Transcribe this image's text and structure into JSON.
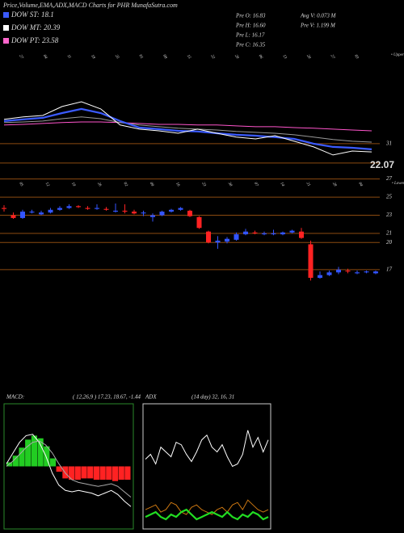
{
  "header": {
    "title": "Price,Volume,EMA,ADX,MACD Charts for PHR MunafaSutra.com",
    "legend": [
      {
        "label": "DOW ST: 18.1",
        "color": "#3b5bff"
      },
      {
        "label": "DOW MT: 20.39",
        "color": "#ffffff"
      },
      {
        "label": "DOW PT: 23.58",
        "color": "#ff66cc"
      }
    ],
    "stats": [
      "Pre  O: 16.83",
      "Pre  H: 16.60",
      "Pre  L: 16.17",
      "Pre  C: 16.35",
      "Avg V: 0.073 M",
      "Pre  V: 1.199 M"
    ]
  },
  "chart_data": [
    {
      "type": "line",
      "upper_label": "• Upper",
      "date_labels": [
        "27",
        "04",
        "11",
        "18",
        "25",
        "01",
        "08",
        "15",
        "22",
        "29",
        "06",
        "13",
        "20",
        "27",
        "03"
      ],
      "ylim": [
        17.2,
        73
      ],
      "yticks": [
        31,
        22.07
      ],
      "series": [
        {
          "color": "#ff55cc",
          "values": [
            39.6,
            39.9,
            40.3,
            40.7,
            41,
            41,
            40.7,
            40.3,
            39.9,
            39.9,
            39.6,
            39.6,
            39.2,
            38.8,
            38.8,
            38.4,
            38.1,
            37.7,
            37.3,
            36.9
          ]
        },
        {
          "color": "#999999",
          "values": [
            40.7,
            41,
            41.4,
            42.5,
            43.3,
            42.5,
            40.7,
            39.6,
            38.8,
            38.1,
            37.7,
            37.3,
            36.6,
            36.2,
            35.8,
            35.1,
            34,
            32.9,
            32.1,
            31.7
          ]
        },
        {
          "color": "#3b5bff",
          "values": [
            41.4,
            42.2,
            42.9,
            45.1,
            47,
            45.1,
            41.4,
            38.4,
            37.7,
            36.9,
            36.6,
            35.8,
            35.1,
            34.7,
            34,
            33.2,
            31,
            29.5,
            29.1,
            28.4
          ]
        },
        {
          "color": "#ffffff",
          "values": [
            42.2,
            43.3,
            44,
            48.1,
            50.3,
            47,
            39.6,
            37.7,
            36.9,
            35.8,
            37.7,
            35.8,
            34,
            33.2,
            34.7,
            32.1,
            29.5,
            25.8,
            27.6,
            27.2
          ]
        }
      ]
    },
    {
      "type": "candlestick",
      "lower_label": "• Lower",
      "date_labels": [
        "05",
        "12",
        "19",
        "26",
        "02",
        "09",
        "16",
        "23",
        "30",
        "07",
        "14",
        "21",
        "28",
        "04"
      ],
      "ylim": [
        14.5,
        27.5
      ],
      "yticks": [
        27,
        25,
        23,
        21,
        20,
        17
      ],
      "up_color": "#3355ff",
      "down_color": "#ff2222",
      "open": [
        23.8,
        23.0,
        22.7,
        23.3,
        23.1,
        23.3,
        23.6,
        23.8,
        24.0,
        23.8,
        23.7,
        23.7,
        23.4,
        23.5,
        23.4,
        23.2,
        22.8,
        23.0,
        23.4,
        23.6,
        23.5,
        22.8,
        21.2,
        20.0,
        20.1,
        20.3,
        20.9,
        21.1,
        20.9,
        20.9,
        20.9,
        21.1,
        21.2,
        19.8,
        16.1,
        16.4,
        16.7,
        16.9,
        16.6,
        16.7,
        16.6
      ],
      "high": [
        24.1,
        23.3,
        23.6,
        23.6,
        23.5,
        23.8,
        24.0,
        24.2,
        24.1,
        24.0,
        24.2,
        23.9,
        24.3,
        24.2,
        23.6,
        23.5,
        23.2,
        23.5,
        23.7,
        23.9,
        23.6,
        22.9,
        21.3,
        20.7,
        20.6,
        21.1,
        21.5,
        21.3,
        21.2,
        21.4,
        21.2,
        21.4,
        21.6,
        20.2,
        16.8,
        16.9,
        17.3,
        17.1,
        16.9,
        16.9,
        16.9
      ],
      "low": [
        23.4,
        22.6,
        22.6,
        23.2,
        23.0,
        23.2,
        23.5,
        23.7,
        23.8,
        23.6,
        23.6,
        23.5,
        23.3,
        23.2,
        23.1,
        22.9,
        22.3,
        22.9,
        23.3,
        23.5,
        22.8,
        21.5,
        19.9,
        19.3,
        19.9,
        20.2,
        20.8,
        20.9,
        20.8,
        20.8,
        20.8,
        21.0,
        20.4,
        15.8,
        16.0,
        16.3,
        16.5,
        16.6,
        16.5,
        16.6,
        16.5
      ],
      "close": [
        23.7,
        22.7,
        23.4,
        23.4,
        23.3,
        23.6,
        23.8,
        24.0,
        23.9,
        23.7,
        23.8,
        23.6,
        23.5,
        23.4,
        23.2,
        23.3,
        23.0,
        23.4,
        23.6,
        23.8,
        22.9,
        21.6,
        20.0,
        20.2,
        20.4,
        20.9,
        21.2,
        21.0,
        21.0,
        21.0,
        21.1,
        21.3,
        20.5,
        16.1,
        16.4,
        16.7,
        17.0,
        16.8,
        16.7,
        16.8,
        16.8
      ]
    },
    {
      "type": "macd",
      "title": "MACD:",
      "subtitle": "( 12,26,9 ) 17.23, 18.67, -1.44",
      "ylim": [
        -4.5,
        4.5
      ],
      "pos_color": "#22cc22",
      "neg_color": "#ff2222",
      "histogram": [
        0.3,
        0.8,
        1.4,
        2.0,
        2.3,
        2.1,
        1.5,
        0.6,
        -0.4,
        -0.9,
        -1.0,
        -1.0,
        -0.9,
        -0.9,
        -1.0,
        -1.0,
        -1.0,
        -1.1,
        -1.0,
        -1.0
      ],
      "series": [
        {
          "color": "#ffffff",
          "values": [
            0.2,
            1.0,
            1.8,
            2.3,
            2.4,
            1.8,
            0.8,
            -0.5,
            -1.4,
            -1.8,
            -1.9,
            -1.8,
            -1.9,
            -2.0,
            -2.2,
            -2.0,
            -1.8,
            -2.1,
            -2.6,
            -3.0
          ]
        },
        {
          "color": "#aaaaaa",
          "values": [
            0.0,
            0.4,
            0.9,
            1.4,
            1.8,
            1.9,
            1.6,
            1.0,
            0.2,
            -0.5,
            -1.0,
            -1.2,
            -1.3,
            -1.4,
            -1.5,
            -1.4,
            -1.3,
            -1.5,
            -1.9,
            -2.3
          ]
        }
      ]
    },
    {
      "type": "line",
      "title": "ADX",
      "subtitle": "(14 day) 32, 16, 31",
      "ylim": [
        0,
        50
      ],
      "series": [
        {
          "color": "#ffffff",
          "values": [
            28,
            30,
            26,
            33,
            31,
            29,
            35,
            34,
            30,
            27,
            31,
            36,
            38,
            33,
            31,
            34,
            29,
            25,
            26,
            30,
            40,
            33,
            37,
            31,
            36
          ]
        },
        {
          "color": "#cc7711",
          "values": [
            7,
            8,
            9,
            6,
            7,
            10,
            9,
            6,
            5,
            8,
            9,
            7,
            6,
            5,
            7,
            8,
            6,
            9,
            10,
            7,
            11,
            9,
            7,
            6,
            7
          ]
        },
        {
          "color": "#22dd22",
          "values": [
            4,
            5,
            6,
            4,
            3,
            5,
            4,
            6,
            7,
            5,
            3,
            4,
            5,
            6,
            5,
            4,
            6,
            4,
            3,
            5,
            4,
            6,
            5,
            3,
            4
          ]
        }
      ]
    }
  ]
}
